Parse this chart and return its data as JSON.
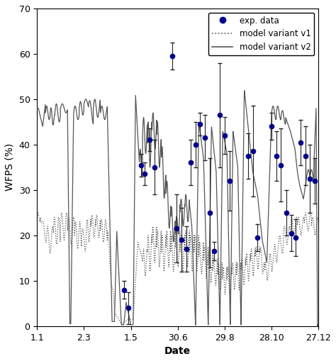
{
  "title": "",
  "xlabel": "Date",
  "ylabel": "WFPS (%)",
  "xlim": [
    0,
    6
  ],
  "ylim": [
    0,
    70
  ],
  "yticks": [
    0,
    10,
    20,
    30,
    40,
    50,
    60,
    70
  ],
  "xtick_labels": [
    "1.1",
    "2.3",
    "1.5",
    "30.6",
    "29.8",
    "28.10",
    "27.12"
  ],
  "xtick_positions": [
    0,
    1,
    2,
    3,
    4,
    5,
    6
  ],
  "exp_data_x": [
    1.85,
    1.95,
    2.22,
    2.3,
    2.4,
    2.5,
    2.88,
    2.98,
    3.08,
    3.18,
    3.28,
    3.38,
    3.48,
    3.58,
    3.68,
    3.78,
    3.9,
    4.0,
    4.1,
    4.5,
    4.6,
    4.7,
    5.0,
    5.1,
    5.2,
    5.32,
    5.42,
    5.52,
    5.62,
    5.72,
    5.82,
    5.92
  ],
  "exp_data_y": [
    8.0,
    4.0,
    35.5,
    33.5,
    41.0,
    35.0,
    59.5,
    21.5,
    19.0,
    17.0,
    36.0,
    40.0,
    44.5,
    41.5,
    25.0,
    16.5,
    46.5,
    42.0,
    32.0,
    37.5,
    38.5,
    19.5,
    44.0,
    37.5,
    35.5,
    25.0,
    20.5,
    19.5,
    40.5,
    37.5,
    32.5,
    32.0
  ],
  "exp_data_yerr": [
    2.0,
    3.5,
    2.5,
    2.5,
    2.5,
    6.0,
    3.0,
    7.5,
    7.0,
    5.0,
    5.0,
    5.0,
    2.5,
    5.0,
    12.0,
    2.0,
    11.5,
    4.0,
    6.5,
    5.0,
    10.0,
    3.0,
    3.0,
    5.5,
    8.0,
    5.0,
    4.0,
    4.0,
    5.0,
    6.5,
    7.5,
    5.0
  ],
  "v1_color": "#555555",
  "v2_color": "#555555",
  "exp_color": "#00008B",
  "legend_labels": [
    "exp. data",
    "model variant v1",
    "model variant v2"
  ]
}
